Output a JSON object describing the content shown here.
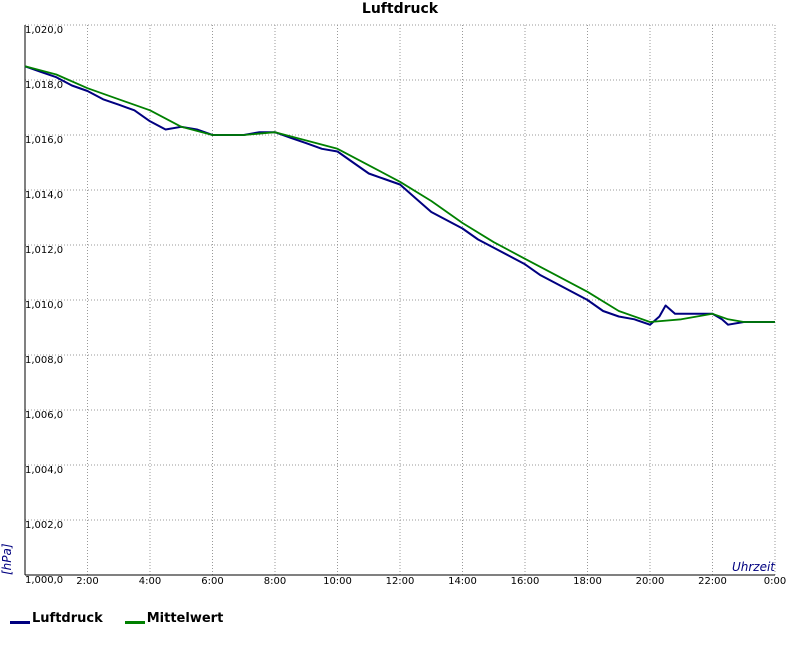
{
  "chart_data": {
    "type": "line",
    "title": "Luftdruck",
    "xlabel": "Uhrzeit",
    "ylabel": "[hPa]",
    "xlim": [
      0,
      24
    ],
    "ylim": [
      1000,
      1020
    ],
    "x_ticks": [
      "2:00",
      "4:00",
      "6:00",
      "8:00",
      "10:00",
      "12:00",
      "14:00",
      "16:00",
      "18:00",
      "20:00",
      "22:00",
      "0:00"
    ],
    "y_ticks": [
      "1,000,0",
      "1,002,0",
      "1,004,0",
      "1,006,0",
      "1,008,0",
      "1,010,0",
      "1,012,0",
      "1,014,0",
      "1,016,0",
      "1,018,0",
      "1,020,0"
    ],
    "grid": true,
    "legend_position": "bottom-left",
    "series": [
      {
        "name": "Luftdruck",
        "color": "#000080",
        "x": [
          0.0,
          0.5,
          1.0,
          1.5,
          2.0,
          2.5,
          3.0,
          3.5,
          4.0,
          4.5,
          5.0,
          5.5,
          6.0,
          6.5,
          7.0,
          7.5,
          8.0,
          8.5,
          9.0,
          9.5,
          10.0,
          10.5,
          11.0,
          11.5,
          12.0,
          12.5,
          13.0,
          13.5,
          14.0,
          14.5,
          15.0,
          15.5,
          16.0,
          16.5,
          17.0,
          17.5,
          18.0,
          18.5,
          19.0,
          19.5,
          20.0,
          20.3,
          20.5,
          20.8,
          21.0,
          21.5,
          22.0,
          22.3,
          22.5,
          23.0,
          23.5,
          24.0
        ],
        "values": [
          1018.5,
          1018.3,
          1018.1,
          1017.8,
          1017.6,
          1017.3,
          1017.1,
          1016.9,
          1016.5,
          1016.2,
          1016.3,
          1016.2,
          1016.0,
          1016.0,
          1016.0,
          1016.1,
          1016.1,
          1015.9,
          1015.7,
          1015.5,
          1015.4,
          1015.0,
          1014.6,
          1014.4,
          1014.2,
          1013.7,
          1013.2,
          1012.9,
          1012.6,
          1012.2,
          1011.9,
          1011.6,
          1011.3,
          1010.9,
          1010.6,
          1010.3,
          1010.0,
          1009.6,
          1009.4,
          1009.3,
          1009.1,
          1009.4,
          1009.8,
          1009.5,
          1009.5,
          1009.5,
          1009.5,
          1009.3,
          1009.1,
          1009.2,
          1009.2,
          1009.2
        ]
      },
      {
        "name": "Mittelwert",
        "color": "#008000",
        "x": [
          0.0,
          1.0,
          2.0,
          3.0,
          4.0,
          5.0,
          6.0,
          7.0,
          8.0,
          9.0,
          10.0,
          11.0,
          12.0,
          13.0,
          14.0,
          15.0,
          16.0,
          17.0,
          18.0,
          19.0,
          20.0,
          21.0,
          22.0,
          22.5,
          23.0,
          24.0
        ],
        "values": [
          1018.5,
          1018.2,
          1017.7,
          1017.3,
          1016.9,
          1016.3,
          1016.0,
          1016.0,
          1016.1,
          1015.8,
          1015.5,
          1014.9,
          1014.3,
          1013.6,
          1012.8,
          1012.1,
          1011.5,
          1010.9,
          1010.3,
          1009.6,
          1009.2,
          1009.3,
          1009.5,
          1009.3,
          1009.2,
          1009.2
        ]
      }
    ]
  }
}
